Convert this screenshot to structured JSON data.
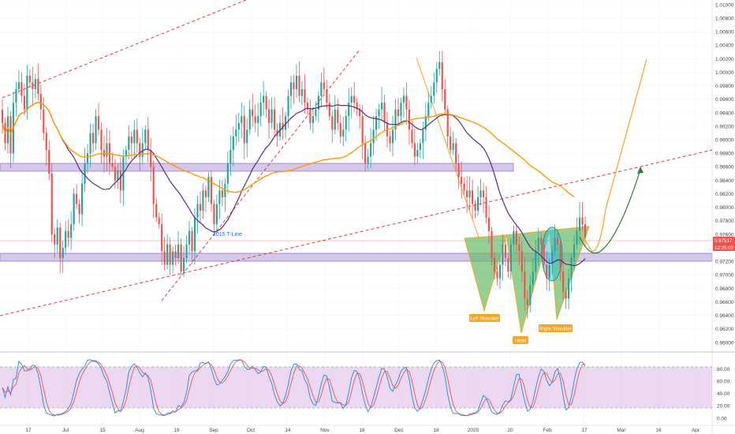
{
  "chart_data": {
    "type": "candlestick",
    "price_axis": {
      "min": 0.96,
      "max": 1.01,
      "ticks": [
        "1.01000",
        "1.00800",
        "1.00600",
        "1.00400",
        "1.00200",
        "1.00000",
        "0.99800",
        "0.99600",
        "0.99400",
        "0.99200",
        "0.99000",
        "0.98800",
        "0.98600",
        "0.98400",
        "0.98200",
        "0.98000",
        "0.97800",
        "0.97600",
        "0.97400",
        "0.97200",
        "0.97000",
        "0.96800",
        "0.96600",
        "0.96400",
        "0.96200",
        "0.96000"
      ],
      "current_price": "0.97517",
      "countdown": "12:25:02",
      "current_price_color": "#ef5350",
      "countdown_color": "#ef5350"
    },
    "oscillator_axis": {
      "ticks": [
        "80.00",
        "60.00",
        "40.00",
        "20.00",
        "0.00"
      ],
      "overbought": 80,
      "oversold": 20,
      "band_color": "#e1bee7"
    },
    "time_axis": {
      "labels": [
        "17",
        "Jul",
        "15",
        "Aug",
        "19",
        "Sep",
        "Oct",
        "14",
        "Nov",
        "18",
        "Dec",
        "16",
        "2020",
        "20",
        "Feb",
        "17",
        "Mar",
        "16",
        "Apr"
      ]
    },
    "colors": {
      "up": "#26a69a",
      "down": "#ef5350",
      "ma_short": "#5e2a84",
      "ma_long": "#ff9800",
      "zone": "#b39ddb",
      "pattern_fill": "#66bb6a",
      "pattern_stroke": "#f5a623",
      "projection_up": "#f5a623",
      "projection_alt": "#2e7d32",
      "trendline": "#e53935",
      "osc_k": "#1e88e5",
      "osc_d": "#ef5350"
    },
    "annotations": {
      "trendline_label": "2015 T-Line",
      "left_shoulder": "Left Shoulder",
      "head": "Head",
      "right_shoulder": "Right Shoulder"
    },
    "closes": [
      0.9925,
      0.9895,
      0.9935,
      0.988,
      0.9955,
      0.9975,
      0.9985,
      0.9965,
      0.9945,
      0.9995,
      0.9985,
      0.9975,
      0.999,
      0.9968,
      0.9945,
      0.991,
      0.9885,
      0.985,
      0.976,
      0.9745,
      0.977,
      0.9725,
      0.974,
      0.9765,
      0.9755,
      0.9775,
      0.982,
      0.9805,
      0.979,
      0.9835,
      0.9865,
      0.988,
      0.991,
      0.9895,
      0.9935,
      0.9915,
      0.9885,
      0.9875,
      0.9895,
      0.9865,
      0.986,
      0.984,
      0.9855,
      0.9825,
      0.9875,
      0.9885,
      0.9905,
      0.9895,
      0.9915,
      0.9895,
      0.9875,
      0.9895,
      0.9915,
      0.9885,
      0.986,
      0.9805,
      0.9785,
      0.9775,
      0.9735,
      0.9715,
      0.9745,
      0.9715,
      0.9735,
      0.9725,
      0.9745,
      0.9705,
      0.9725,
      0.9745,
      0.9765,
      0.9735,
      0.9785,
      0.9805,
      0.9795,
      0.9825,
      0.9815,
      0.9845,
      0.9805,
      0.9775,
      0.9805,
      0.9825,
      0.9815,
      0.9835,
      0.9865,
      0.9885,
      0.9905,
      0.9915,
      0.9925,
      0.9935,
      0.9895,
      0.9915,
      0.9945,
      0.9935,
      0.9925,
      0.9935,
      0.9955,
      0.9965,
      0.9945,
      0.9925,
      0.9945,
      0.9915,
      0.9905,
      0.9925,
      0.9915,
      0.9935,
      0.9965,
      0.9985,
      0.9975,
      0.9995,
      0.9965,
      0.9975,
      0.9955,
      0.9945,
      0.9925,
      0.9935,
      0.9945,
      0.9965,
      0.9985,
      0.9975,
      0.9955,
      0.9935,
      0.9915,
      0.9945,
      0.9925,
      0.9905,
      0.9915,
      0.9935,
      0.9955,
      0.9965,
      0.9955,
      0.9945,
      0.9935,
      0.9895,
      0.9865,
      0.9875,
      0.9895,
      0.9915,
      0.9935,
      0.9945,
      0.9955,
      0.9925,
      0.9905,
      0.9895,
      0.9915,
      0.9945,
      0.9935,
      0.9955,
      0.9965,
      0.9945,
      0.9915,
      0.9895,
      0.9875,
      0.9885,
      0.9895,
      0.9915,
      0.9935,
      0.9955,
      0.9965,
      0.9985,
      1.0005,
      1.0015,
      0.9975,
      0.9945,
      0.9905,
      0.9885,
      0.9895,
      0.9865,
      0.9845,
      0.9835,
      0.9825,
      0.9815,
      0.9825,
      0.9805,
      0.9795,
      0.9815,
      0.9825,
      0.9815,
      0.9785,
      0.9765,
      0.9725,
      0.9705,
      0.9695,
      0.9715,
      0.9745,
      0.9725,
      0.9705,
      0.9745,
      0.9765,
      0.9745,
      0.9735,
      0.9705,
      0.9665,
      0.9655,
      0.9685,
      0.9705,
      0.9735,
      0.9755,
      0.9745,
      0.9715,
      0.9695,
      0.9715,
      0.9735,
      0.9755,
      0.9745,
      0.9705,
      0.9675,
      0.9665,
      0.9695,
      0.9725,
      0.9745,
      0.9765,
      0.9785,
      0.9775,
      0.9755
    ]
  }
}
